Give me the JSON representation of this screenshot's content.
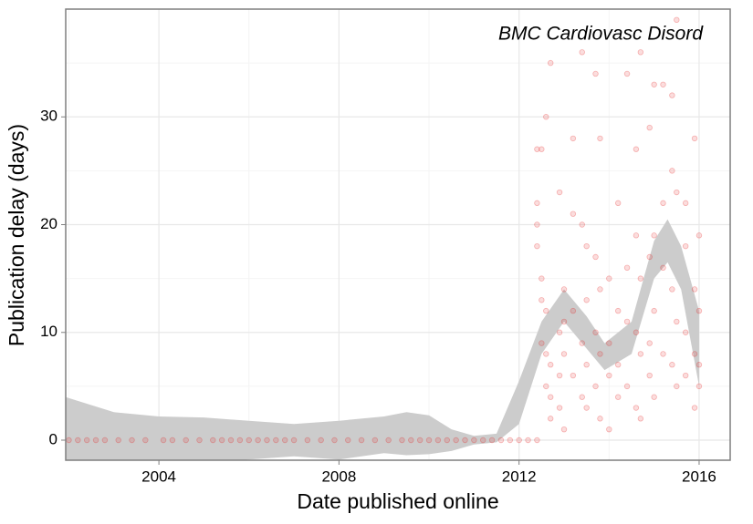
{
  "chart_data": {
    "type": "scatter",
    "annotation": "BMC Cardiovasc Disord",
    "xlabel": "Date published online",
    "ylabel": "Publication delay (days)",
    "xlim": [
      2001.93,
      2016.69
    ],
    "ylim": [
      -1.86,
      40
    ],
    "xticks": [
      2004,
      2008,
      2012,
      2016
    ],
    "yticks": [
      0,
      10,
      20,
      30
    ],
    "xminorticks": [
      2002,
      2006,
      2010,
      2014
    ],
    "yminorticks": [
      5,
      15,
      25,
      35
    ],
    "grid": true,
    "color": "#e41a1c",
    "x": [
      2002.0,
      2002.2,
      2002.4,
      2002.6,
      2002.8,
      2003.1,
      2003.4,
      2003.7,
      2004.1,
      2004.3,
      2004.6,
      2004.9,
      2005.2,
      2005.4,
      2005.6,
      2005.8,
      2006.0,
      2006.2,
      2006.4,
      2006.6,
      2006.8,
      2007.0,
      2007.3,
      2007.6,
      2007.9,
      2008.2,
      2008.5,
      2008.8,
      2009.1,
      2009.4,
      2009.6,
      2009.8,
      2010.0,
      2010.2,
      2010.4,
      2010.6,
      2010.8,
      2011.0,
      2011.2,
      2011.4,
      2011.6,
      2011.8,
      2012.0,
      2012.2,
      2012.4,
      2012.4,
      2012.4,
      2012.4,
      2012.4,
      2012.5,
      2012.5,
      2012.5,
      2012.5,
      2012.6,
      2012.6,
      2012.6,
      2012.6,
      2012.7,
      2012.7,
      2012.7,
      2012.7,
      2012.9,
      2012.9,
      2012.9,
      2012.9,
      2013.0,
      2013.0,
      2013.0,
      2013.0,
      2013.2,
      2013.2,
      2013.2,
      2013.2,
      2013.4,
      2013.4,
      2013.4,
      2013.4,
      2013.5,
      2013.5,
      2013.5,
      2013.5,
      2013.7,
      2013.7,
      2013.7,
      2013.7,
      2013.8,
      2013.8,
      2013.8,
      2013.8,
      2014.0,
      2014.0,
      2014.0,
      2014.0,
      2014.2,
      2014.2,
      2014.2,
      2014.2,
      2014.4,
      2014.4,
      2014.4,
      2014.4,
      2014.6,
      2014.6,
      2014.6,
      2014.6,
      2014.7,
      2014.7,
      2014.7,
      2014.7,
      2014.9,
      2014.9,
      2014.9,
      2014.9,
      2015.0,
      2015.0,
      2015.0,
      2015.0,
      2015.2,
      2015.2,
      2015.2,
      2015.2,
      2015.4,
      2015.4,
      2015.4,
      2015.4,
      2015.5,
      2015.5,
      2015.5,
      2015.5,
      2015.7,
      2015.7,
      2015.7,
      2015.7,
      2015.9,
      2015.9,
      2015.9,
      2015.9,
      2016.0,
      2016.0,
      2016.0,
      2016.0
    ],
    "values": [
      0,
      0,
      0,
      0,
      0,
      0,
      0,
      0,
      0,
      0,
      0,
      0,
      0,
      0,
      0,
      0,
      0,
      0,
      0,
      0,
      0,
      0,
      0,
      0,
      0,
      0,
      0,
      0,
      0,
      0,
      0,
      0,
      0,
      0,
      0,
      0,
      0,
      0,
      0,
      0,
      0,
      0,
      0,
      0,
      0,
      22,
      18,
      20,
      27,
      15,
      13,
      9,
      27,
      30,
      12,
      5,
      8,
      35,
      4,
      7,
      2,
      23,
      10,
      6,
      3,
      14,
      11,
      8,
      1,
      28,
      21,
      12,
      6,
      36,
      20,
      9,
      4,
      18,
      13,
      7,
      3,
      34,
      17,
      10,
      5,
      28,
      14,
      8,
      2,
      15,
      9,
      6,
      1,
      22,
      12,
      7,
      4,
      34,
      16,
      11,
      5,
      27,
      19,
      10,
      3,
      36,
      15,
      8,
      2,
      29,
      17,
      9,
      6,
      33,
      19,
      12,
      4,
      33,
      22,
      16,
      8,
      32,
      25,
      14,
      7,
      39,
      23,
      11,
      5,
      22,
      18,
      10,
      6,
      28,
      14,
      8,
      3,
      19,
      12,
      7,
      5
    ],
    "band": {
      "x": [
        2001.93,
        2003,
        2004,
        2005,
        2006,
        2007,
        2008,
        2009,
        2009.5,
        2010,
        2010.5,
        2011,
        2011.5,
        2012,
        2012.5,
        2013,
        2013.5,
        2013.9,
        2014.5,
        2015,
        2015.3,
        2015.6,
        2016
      ],
      "upper": [
        4,
        2.6,
        2.2,
        2.1,
        1.8,
        1.5,
        1.8,
        2.2,
        2.6,
        2.3,
        1.0,
        0.4,
        0.6,
        5.5,
        11,
        14,
        11.5,
        9,
        11,
        18.5,
        20.5,
        18,
        12
      ],
      "lower": [
        -4,
        -2.6,
        -2.2,
        -2.1,
        -1.8,
        -1.5,
        -1.8,
        -1.2,
        -1.4,
        -1.3,
        -1.0,
        -0.4,
        -0.2,
        1.5,
        8,
        11,
        8.5,
        6.5,
        8,
        15,
        16.5,
        14,
        5
      ]
    }
  }
}
